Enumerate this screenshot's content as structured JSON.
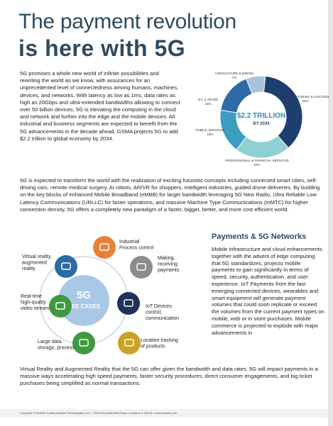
{
  "header": {
    "title_line1": "The payment revolution",
    "title_line2": "is here with 5G"
  },
  "intro": "5G promises a whole new world of infinite possibilities and rewriting the world as we know, with assurances for an unprecedented level of connectedness among humans, machines, devices, and networks. With latency as low as 1ms, data rates as high as 20Gbps and ultra-extended bandwidths allowing to connect over 50 billion devices, 5G is elevating the computing in the cloud and network and further into the edge and the mobile devices. All industrial and business segments are expected to benefit from the 5G advancements in the decade ahead. GSMA projects 5G to add $2.2 trillion to global economy by 2034.",
  "donut": {
    "type": "pie",
    "center_line1": "$2.2 TRILLION",
    "center_line2": "BY 2034",
    "categories": [
      "AGRICULTURE & MINING",
      "MANUFACTURING & UTILITIES",
      "PROFESSIONAL & FINANCIAL SERVICES",
      "PUBLIC SERVICES",
      "ICT & TRADE"
    ],
    "values": [
      7,
      34,
      20,
      16,
      15
    ],
    "value_labels": [
      "7%",
      "34%",
      "20%",
      "16%",
      "15%"
    ],
    "colors": [
      "#a8c4dc",
      "#1d3f6e",
      "#8fd0d2",
      "#3e9cc0",
      "#2d6aa6"
    ]
  },
  "body": "5G is expected to transform the world with the realization of exciting futuristic concepts including connected smart cities, self-driving cars, remote medical surgery, AI robots, AR/VR for shoppers, intelligent industries, guided drone deliveries. By building on the key blocks of enhanced Mobile Broadband (eMBB) for larger bandwidth leveraging 5G New Radio, Ultra Reliable Low Latency Communications (URLLC) for faster operations, and massive Machine Type Communications (mMTC) for higher connection density, 5G offers a completely new paradigm of a faster, bigger, better, and more cost efficient world.",
  "use_cases": {
    "center_line1": "5G",
    "center_line2": "USE CASES",
    "items": [
      {
        "lines": [
          "Industrial",
          "Process control"
        ]
      },
      {
        "lines": [
          "Making,",
          "receiving",
          "payments"
        ]
      },
      {
        "lines": [
          "IoT Devices",
          "control,",
          "communication"
        ]
      },
      {
        "lines": [
          "Location tracking",
          "of products"
        ]
      },
      {
        "lines": [
          "Large data",
          "storage, process"
        ]
      },
      {
        "lines": [
          "Real-time",
          "high-quality",
          "video stream"
        ]
      },
      {
        "lines": [
          "Virtual reality,",
          "augmented",
          "reality"
        ]
      }
    ]
  },
  "sidebar": {
    "heading": "Payments & 5G Networks",
    "text": "Mobile infrastructure and cloud enhancements together with the advent of edge computing that 5G standardizes, projects mobile payments to gain significantly in terms of speed, security, authentication, and user experience. IoT Payments from the fast emerging connected devices, wearables and smart equipment will generate payment volumes that could soon replicate or exceed the volumes from the current payment types on mobile, web or in store purchases. Mobile commerce is projected to explode with major advancements in"
  },
  "closing": "Virtual Reality and Augmented Reality that the 5G can offer given the bandwidth and data rates. 5G will impact payments in a massive ways accelerating high speed payments, faster security procedures, direct consumer engagements, and big ticket purchases being simplified as normal transactions.",
  "footer": "Copyright © NewNet Communication Technologies, LLC • 7100 East Butterfield Road, Lombard, IL 60148 • www.newnet.com"
}
